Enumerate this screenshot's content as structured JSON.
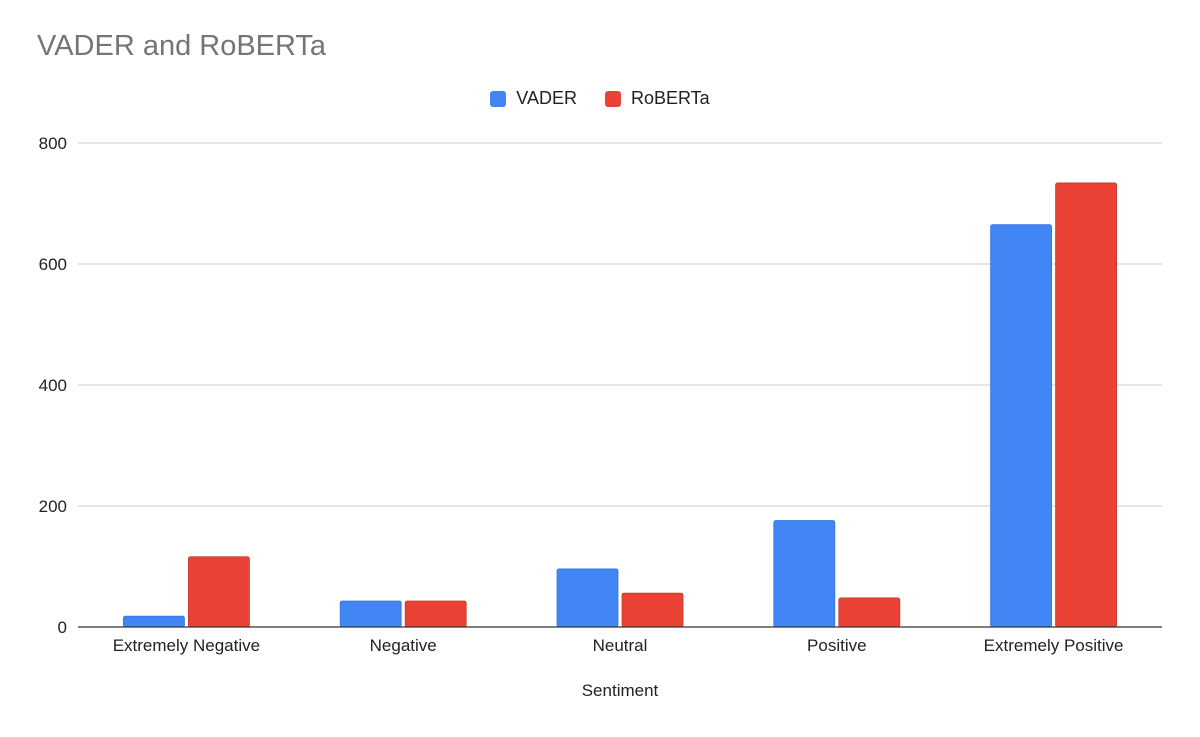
{
  "chart_data": {
    "type": "bar",
    "title": "VADER and RoBERTa",
    "xlabel": "Sentiment",
    "ylabel": "",
    "categories": [
      "Extremely Negative",
      "Negative",
      "Neutral",
      "Positive",
      "Extremely Positive"
    ],
    "series": [
      {
        "name": "VADER",
        "values": [
          18,
          43,
          96,
          176,
          665
        ]
      },
      {
        "name": "RoBERTa",
        "values": [
          116,
          43,
          56,
          48,
          734
        ]
      }
    ],
    "ylim": [
      0,
      800
    ],
    "yticks": [
      0,
      200,
      400,
      600,
      800
    ],
    "grid": true,
    "legend_position": "top-center",
    "colors": {
      "series": [
        "#4285f4",
        "#ea4335"
      ],
      "title": "#757575",
      "grid": "#cccccc",
      "axis": "#333333"
    }
  }
}
